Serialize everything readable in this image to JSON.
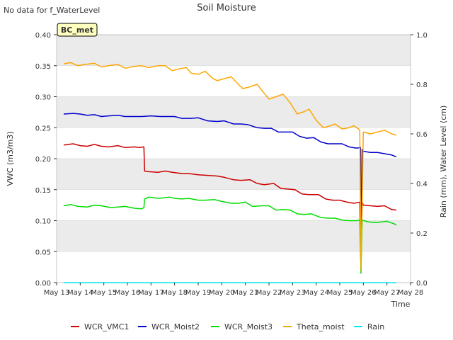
{
  "note": "No data for f_WaterLevel",
  "colors": {
    "WCR_VMC1": "#cc0000",
    "WCR_Moist2": "#0000cc",
    "WCR_Moist3": "#00dd00",
    "Theta_moist": "#ffa500",
    "Rain": "#00e5ee",
    "band": "#ebebeb",
    "badge_fill": "#ffffc0",
    "badge_text": "#8b0000"
  },
  "chart_data": {
    "type": "line",
    "title": "Soil Moisture",
    "xlabel": "Time",
    "ylabel": "VWC (m3/m3)",
    "y2label": "Rain (mm), Water Level (cm)",
    "badge": "BC_met",
    "xlim": [
      13,
      28
    ],
    "ylim": [
      0,
      0.4
    ],
    "y2lim": [
      0,
      1.0
    ],
    "x_ticks": [
      13,
      14,
      15,
      16,
      17,
      18,
      19,
      20,
      21,
      22,
      23,
      24,
      25,
      26,
      27,
      28
    ],
    "x_tick_labels": [
      "May 13",
      "May 14",
      "May 15",
      "May 16",
      "May 17",
      "May 18",
      "May 19",
      "May 20",
      "May 21",
      "May 22",
      "May 23",
      "May 24",
      "May 25",
      "May 26",
      "May 27",
      "May 28"
    ],
    "y_ticks": [
      0.0,
      0.05,
      0.1,
      0.15,
      0.2,
      0.25,
      0.3,
      0.35,
      0.4
    ],
    "y_tick_labels": [
      "0.00",
      "0.05",
      "0.10",
      "0.15",
      "0.20",
      "0.25",
      "0.30",
      "0.35",
      "0.40"
    ],
    "y2_ticks": [
      0.0,
      0.2,
      0.4,
      0.6,
      0.8,
      1.0
    ],
    "y2_tick_labels": [
      "0.0",
      "0.2",
      "0.4",
      "0.6",
      "0.8",
      "1.0"
    ],
    "legend": [
      "WCR_VMC1",
      "WCR_Moist2",
      "WCR_Moist3",
      "Theta_moist",
      "Rain"
    ],
    "legend_position": "bottom",
    "series": [
      {
        "name": "WCR_VMC1",
        "axis": "left",
        "x": [
          13.3,
          13.7,
          14.0,
          14.3,
          14.6,
          14.9,
          15.2,
          15.6,
          15.9,
          16.3,
          16.5,
          16.7,
          16.73,
          16.9,
          17.3,
          17.6,
          17.9,
          18.3,
          18.6,
          19.0,
          19.4,
          19.8,
          20.1,
          20.5,
          20.8,
          21.2,
          21.5,
          21.8,
          22.2,
          22.5,
          22.8,
          23.1,
          23.4,
          23.7,
          24.1,
          24.4,
          24.7,
          25.0,
          25.3,
          25.6,
          25.85,
          25.9,
          25.95,
          26.0,
          26.3,
          26.6,
          26.9,
          27.2,
          27.4
        ],
        "y": [
          0.222,
          0.224,
          0.221,
          0.22,
          0.223,
          0.22,
          0.219,
          0.221,
          0.218,
          0.219,
          0.218,
          0.219,
          0.18,
          0.179,
          0.178,
          0.18,
          0.178,
          0.176,
          0.176,
          0.174,
          0.173,
          0.172,
          0.17,
          0.166,
          0.165,
          0.166,
          0.16,
          0.158,
          0.16,
          0.152,
          0.151,
          0.15,
          0.143,
          0.142,
          0.142,
          0.135,
          0.133,
          0.133,
          0.13,
          0.128,
          0.13,
          0.02,
          0.13,
          0.125,
          0.124,
          0.123,
          0.124,
          0.118,
          0.117
        ]
      },
      {
        "name": "WCR_Moist2",
        "axis": "left",
        "x": [
          13.3,
          13.7,
          14.0,
          14.3,
          14.6,
          14.9,
          15.2,
          15.6,
          15.9,
          16.3,
          16.6,
          17.0,
          17.4,
          17.8,
          18.0,
          18.3,
          18.7,
          19.0,
          19.4,
          19.8,
          20.1,
          20.5,
          20.8,
          21.1,
          21.5,
          21.8,
          22.1,
          22.4,
          22.7,
          23.0,
          23.3,
          23.6,
          23.9,
          24.2,
          24.5,
          24.8,
          25.1,
          25.4,
          25.7,
          25.88,
          25.9,
          25.95,
          26.0,
          26.3,
          26.6,
          26.9,
          27.2,
          27.4
        ],
        "y": [
          0.272,
          0.273,
          0.272,
          0.27,
          0.271,
          0.268,
          0.269,
          0.27,
          0.268,
          0.268,
          0.268,
          0.269,
          0.268,
          0.268,
          0.268,
          0.265,
          0.265,
          0.266,
          0.261,
          0.26,
          0.261,
          0.256,
          0.256,
          0.255,
          0.25,
          0.249,
          0.249,
          0.243,
          0.243,
          0.243,
          0.236,
          0.233,
          0.234,
          0.227,
          0.224,
          0.224,
          0.224,
          0.219,
          0.217,
          0.218,
          0.05,
          0.215,
          0.212,
          0.21,
          0.21,
          0.208,
          0.206,
          0.203
        ]
      },
      {
        "name": "WCR_Moist3",
        "axis": "left",
        "x": [
          13.3,
          13.6,
          13.9,
          14.3,
          14.6,
          14.9,
          15.3,
          15.6,
          15.9,
          16.3,
          16.6,
          16.7,
          16.73,
          16.9,
          17.3,
          17.6,
          17.8,
          18.0,
          18.3,
          18.6,
          19.0,
          19.3,
          19.7,
          20.0,
          20.4,
          20.7,
          21.0,
          21.3,
          21.7,
          22.0,
          22.3,
          22.6,
          22.9,
          23.2,
          23.5,
          23.8,
          24.2,
          24.5,
          24.8,
          25.1,
          25.4,
          25.7,
          25.85,
          25.9,
          25.95,
          26.2,
          26.5,
          26.8,
          27.0,
          27.3,
          27.4
        ],
        "y": [
          0.124,
          0.126,
          0.123,
          0.122,
          0.125,
          0.124,
          0.121,
          0.122,
          0.123,
          0.12,
          0.119,
          0.121,
          0.135,
          0.138,
          0.136,
          0.137,
          0.138,
          0.136,
          0.135,
          0.136,
          0.133,
          0.133,
          0.134,
          0.131,
          0.128,
          0.128,
          0.13,
          0.123,
          0.124,
          0.124,
          0.117,
          0.118,
          0.117,
          0.111,
          0.11,
          0.111,
          0.105,
          0.104,
          0.104,
          0.101,
          0.1,
          0.1,
          0.101,
          0.015,
          0.101,
          0.098,
          0.097,
          0.098,
          0.099,
          0.095,
          0.093
        ]
      },
      {
        "name": "Theta_moist",
        "axis": "left",
        "x": [
          13.3,
          13.6,
          13.9,
          14.2,
          14.6,
          14.9,
          15.2,
          15.6,
          15.9,
          16.3,
          16.6,
          16.9,
          17.3,
          17.6,
          17.9,
          18.2,
          18.5,
          18.7,
          19.0,
          19.3,
          19.6,
          19.8,
          20.0,
          20.4,
          20.7,
          20.9,
          21.2,
          21.5,
          21.7,
          22.0,
          22.3,
          22.6,
          22.9,
          23.2,
          23.5,
          23.7,
          24.0,
          24.3,
          24.6,
          24.8,
          25.1,
          25.4,
          25.6,
          25.8,
          25.85,
          25.9,
          26.0,
          26.3,
          26.6,
          26.9,
          27.2,
          27.4
        ],
        "y": [
          0.353,
          0.355,
          0.35,
          0.352,
          0.354,
          0.348,
          0.35,
          0.352,
          0.346,
          0.349,
          0.35,
          0.347,
          0.35,
          0.35,
          0.342,
          0.345,
          0.347,
          0.338,
          0.336,
          0.341,
          0.33,
          0.326,
          0.328,
          0.332,
          0.32,
          0.313,
          0.316,
          0.32,
          0.31,
          0.296,
          0.3,
          0.304,
          0.29,
          0.272,
          0.276,
          0.28,
          0.262,
          0.25,
          0.253,
          0.256,
          0.248,
          0.25,
          0.253,
          0.248,
          0.245,
          0.02,
          0.243,
          0.24,
          0.243,
          0.246,
          0.24,
          0.238
        ]
      },
      {
        "name": "Rain",
        "axis": "right",
        "x": [
          13.3,
          27.4
        ],
        "y": [
          0.0,
          0.0
        ]
      }
    ]
  }
}
